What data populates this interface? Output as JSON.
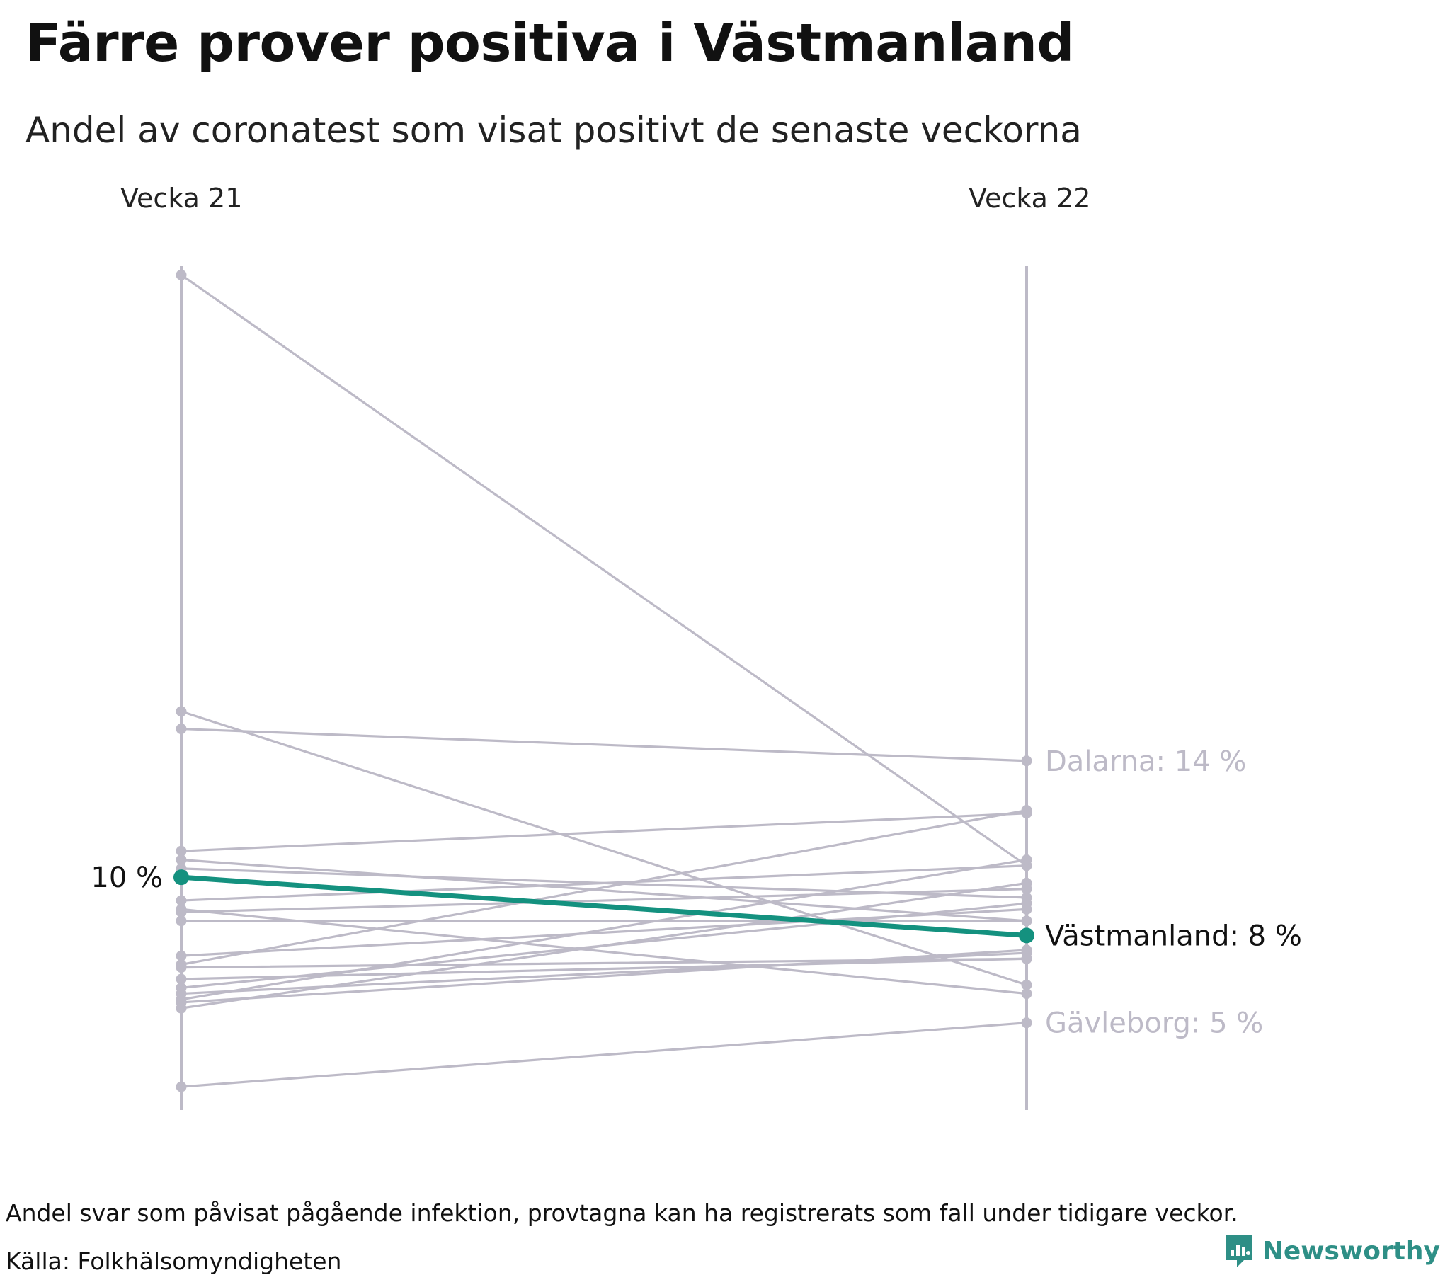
{
  "header": {
    "title": "Färre prover positiva i Västmanland",
    "subtitle": "Andel av coronatest som visat positivt de senaste veckorna"
  },
  "chart_data": {
    "type": "slope",
    "title": "Färre prover positiva i Västmanland",
    "subtitle": "Andel av coronatest som visat positivt de senaste veckorna",
    "categories": [
      "Vecka 21",
      "Vecka 22"
    ],
    "unit": "%",
    "ylim": [
      2,
      31
    ],
    "highlight_color": "#14917f",
    "other_color": "#bdbac7",
    "series": [
      {
        "name": "Västmanland",
        "values": [
          10.0,
          8.0
        ],
        "highlight": true
      },
      {
        "name": "Dalarna",
        "values": [
          15.1,
          14.0
        ]
      },
      {
        "name": "Gävleborg",
        "values": [
          2.8,
          5.0
        ]
      },
      {
        "name": "",
        "values": [
          30.7,
          10.4
        ]
      },
      {
        "name": "",
        "values": [
          15.7,
          6.3
        ]
      },
      {
        "name": "",
        "values": [
          10.9,
          12.2
        ]
      },
      {
        "name": "",
        "values": [
          10.6,
          8.5
        ]
      },
      {
        "name": "",
        "values": [
          10.3,
          9.3
        ]
      },
      {
        "name": "",
        "values": [
          9.2,
          10.4
        ]
      },
      {
        "name": "",
        "values": [
          8.8,
          9.6
        ]
      },
      {
        "name": "",
        "values": [
          8.5,
          8.5
        ]
      },
      {
        "name": "",
        "values": [
          7.3,
          8.9
        ]
      },
      {
        "name": "",
        "values": [
          7.0,
          12.3
        ]
      },
      {
        "name": "",
        "values": [
          6.5,
          7.2
        ]
      },
      {
        "name": "",
        "values": [
          6.0,
          7.4
        ]
      },
      {
        "name": "",
        "values": [
          5.8,
          10.6
        ]
      },
      {
        "name": "",
        "values": [
          5.7,
          7.5
        ]
      },
      {
        "name": "",
        "values": [
          5.5,
          9.8
        ]
      },
      {
        "name": "",
        "values": [
          6.9,
          7.2
        ]
      },
      {
        "name": "",
        "values": [
          8.9,
          6.0
        ]
      },
      {
        "name": "",
        "values": [
          6.2,
          9.1
        ]
      }
    ],
    "start_label": "10 %",
    "end_labels": [
      {
        "text": "Dalarna: 14 %",
        "value": 14.0,
        "highlight": false
      },
      {
        "text": "Västmanland: 8 %",
        "value": 8.0,
        "highlight": true
      },
      {
        "text": "Gävleborg: 5 %",
        "value": 5.0,
        "highlight": false
      }
    ]
  },
  "footer": {
    "note": "Andel svar som påvisat pågående infektion, provtagna kan ha registrerats som fall under tidigare veckor.",
    "source": "Källa: Folkhälsomyndigheten",
    "brand": "Newsworthy"
  }
}
